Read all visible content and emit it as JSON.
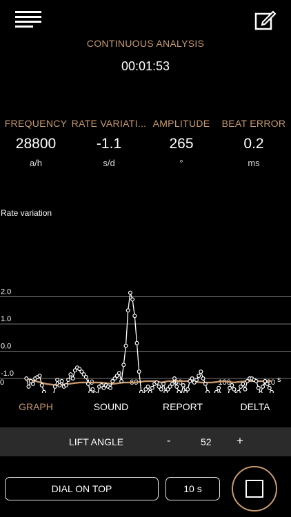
{
  "header": {
    "menu_icon": "hamburger-menu-icon",
    "edit_icon": "edit-note-icon"
  },
  "analysis": {
    "title": "CONTINUOUS ANALYSIS",
    "elapsed": "00:01:53"
  },
  "metrics": [
    {
      "label": "FREQUENCY",
      "value": "28800",
      "unit": "a/h"
    },
    {
      "label": "RATE VARIATI...",
      "value": "-1.1",
      "unit": "s/d"
    },
    {
      "label": "AMPLITUDE",
      "value": "265",
      "unit": "°"
    },
    {
      "label": "BEAT ERROR",
      "value": "0.2",
      "unit": "ms"
    }
  ],
  "chart_data": {
    "type": "line",
    "title": "Rate variation",
    "xlabel": "s",
    "ylabel": "",
    "xlim": [
      0,
      122
    ],
    "ylim": [
      -2.6,
      2.9
    ],
    "x_ticks": [
      "0",
      "40",
      "60",
      "80",
      "100",
      "120"
    ],
    "y_ticks": [
      "2.0",
      "1.0",
      "0.0",
      "-1.0",
      "-2.0"
    ],
    "grid": true,
    "series": [
      {
        "color": "#ffffff",
        "marker": "circle",
        "x": [
          11,
          12,
          13,
          14,
          15,
          16,
          17,
          18,
          19,
          20,
          21,
          22,
          23,
          24,
          25,
          26,
          27,
          28,
          29,
          30,
          31,
          32,
          33,
          34,
          35,
          36,
          37,
          38,
          39,
          40,
          41,
          42,
          43,
          44,
          45,
          46,
          47,
          48,
          49,
          50,
          51,
          52,
          53,
          54,
          55,
          56,
          57,
          58,
          59,
          60,
          61,
          62,
          63,
          64,
          65,
          66,
          67,
          68,
          69,
          70,
          71,
          72,
          73,
          74,
          75,
          76,
          77,
          78,
          79,
          80,
          81,
          82,
          83,
          84,
          85,
          86,
          87,
          88,
          89,
          90,
          91,
          92,
          93,
          94,
          95,
          96,
          97,
          98,
          99,
          100,
          101,
          102,
          103,
          104,
          105,
          106,
          107,
          108,
          109,
          110,
          111,
          112,
          113,
          114,
          115,
          116,
          117,
          118,
          119,
          120,
          121,
          122
        ],
        "y": [
          -1.0,
          -1.3,
          -1.1,
          -1.2,
          -1.0,
          -0.95,
          -0.9,
          -1.25,
          -1.5,
          -2.0,
          -2.2,
          -2.05,
          -1.7,
          -1.3,
          -1.05,
          -1.25,
          -1.1,
          -1.3,
          -1.25,
          -1.05,
          -0.85,
          -1.0,
          -0.7,
          -0.6,
          -0.65,
          -0.75,
          -0.85,
          -0.95,
          -1.2,
          -1.5,
          -1.4,
          -1.55,
          -1.7,
          -1.3,
          -1.25,
          -1.35,
          -1.25,
          -1.3,
          -1.35,
          -1.1,
          -1.0,
          -0.9,
          -0.8,
          -1.1,
          -0.5,
          0.2,
          1.5,
          2.15,
          1.9,
          1.3,
          0.3,
          -0.75,
          -1.5,
          -1.6,
          -1.4,
          -1.3,
          -1.5,
          -1.35,
          -1.2,
          -1.15,
          -1.3,
          -1.4,
          -1.2,
          -1.5,
          -1.4,
          -1.3,
          -1.2,
          -1.0,
          -1.3,
          -1.5,
          -1.6,
          -1.25,
          -1.5,
          -1.4,
          -1.1,
          -1.0,
          -1.15,
          -1.05,
          -0.9,
          -0.75,
          -1.0,
          -1.2,
          -1.5,
          -1.8,
          -1.95,
          -1.6,
          -1.5,
          -1.35,
          -1.6,
          -1.9,
          -1.8,
          -1.7,
          -1.35,
          -1.25,
          -1.4,
          -1.6,
          -1.5,
          -1.3,
          -1.2,
          -1.4,
          -1.1,
          -1.0,
          -1.0,
          -1.05,
          -1.1,
          -1.35,
          -1.55,
          -1.3,
          -1.1,
          -1.2,
          -1.35,
          -1.5
        ]
      },
      {
        "color": "#c99a6e",
        "marker": "none",
        "x": [
          11,
          15,
          20,
          25,
          30,
          35,
          40,
          45,
          50,
          55,
          60,
          65,
          70,
          72,
          75,
          80,
          85,
          90,
          95,
          100,
          105,
          110,
          115,
          122
        ],
        "y": [
          -1.0,
          -1.1,
          -1.2,
          -1.25,
          -1.2,
          -1.15,
          -1.15,
          -1.15,
          -1.2,
          -1.15,
          -1.15,
          -1.1,
          -1.1,
          -1.15,
          -1.1,
          -1.1,
          -1.1,
          -1.15,
          -1.15,
          -1.1,
          -1.15,
          -1.1,
          -1.1,
          -1.1
        ]
      }
    ]
  },
  "tabs": [
    {
      "label": "GRAPH",
      "active": true
    },
    {
      "label": "SOUND",
      "active": false
    },
    {
      "label": "REPORT",
      "active": false
    },
    {
      "label": "DELTA",
      "active": false
    }
  ],
  "lift_angle": {
    "label": "LIFT ANGLE",
    "minus": "-",
    "value": "52",
    "plus": "+"
  },
  "controls": {
    "dial_label": "DIAL ON TOP",
    "duration_label": "10 s",
    "stop_icon": "stop-icon"
  }
}
